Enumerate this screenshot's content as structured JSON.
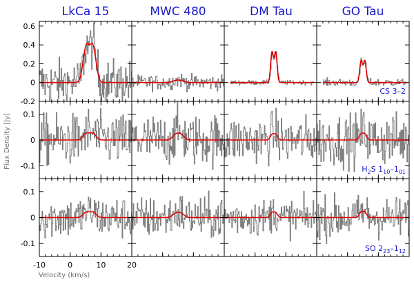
{
  "chart_data": {
    "type": "line",
    "columns": [
      "LkCa 15",
      "MWC 480",
      "DM Tau",
      "GO Tau"
    ],
    "xlabel": "Velocity (km/s)",
    "ylabel": "Flux Density [Jy]",
    "xlim": [
      -10,
      20
    ],
    "x_ticks": [
      "-10",
      "0",
      "10",
      "20"
    ],
    "grid": false,
    "colors": {
      "observed": "#808080",
      "model": "#e00000",
      "title": "#1a1acd",
      "axes": "#000000"
    },
    "rows": [
      {
        "line": "CS 3-2",
        "line_html": "CS 3–2",
        "ylim": [
          -0.2,
          0.65
        ],
        "y_ticks": [
          -0.2,
          0.0,
          0.2,
          0.4,
          0.6
        ],
        "y_tick_labels": [
          "-0.2",
          "0",
          "0.2",
          "0.4",
          "0.6"
        ],
        "models": [
          {
            "source": "LkCa 15",
            "peak": 0.37,
            "center": 6.3,
            "separation": 2.2,
            "width": 1.0
          },
          {
            "source": "MWC 480",
            "peak": 0.02,
            "center": 5.1,
            "separation": 1.8,
            "width": 1.0
          },
          {
            "source": "DM Tau",
            "peak": 0.32,
            "center": 6.1,
            "separation": 1.2,
            "width": 0.45
          },
          {
            "source": "GO Tau",
            "peak": 0.23,
            "center": 5.0,
            "separation": 1.2,
            "width": 0.45
          }
        ],
        "noise_rms": [
          0.12,
          0.04,
          0.012,
          0.02
        ]
      },
      {
        "line": "H2S 1_10-1_01",
        "ylim": [
          -0.15,
          0.15
        ],
        "y_ticks": [
          -0.1,
          0.0,
          0.1
        ],
        "y_tick_labels": [
          "-0.1",
          "0",
          "0.1"
        ],
        "models": [
          {
            "source": "LkCa 15",
            "peak": 0.025,
            "center": 6.3,
            "separation": 2.2,
            "width": 1.0
          },
          {
            "source": "MWC 480",
            "peak": 0.02,
            "center": 5.1,
            "separation": 1.8,
            "width": 1.0
          },
          {
            "source": "DM Tau",
            "peak": 0.02,
            "center": 6.1,
            "separation": 1.2,
            "width": 0.6
          },
          {
            "source": "GO Tau",
            "peak": 0.022,
            "center": 5.0,
            "separation": 1.2,
            "width": 0.6
          }
        ],
        "noise_rms": [
          0.05,
          0.05,
          0.045,
          0.05
        ]
      },
      {
        "line": "SO 2_23-1_12",
        "ylim": [
          -0.15,
          0.15
        ],
        "y_ticks": [
          -0.1,
          0.0,
          0.1
        ],
        "y_tick_labels": [
          "-0.1",
          "0",
          "0.1"
        ],
        "models": [
          {
            "source": "LkCa 15",
            "peak": 0.02,
            "center": 6.3,
            "separation": 2.2,
            "width": 1.0
          },
          {
            "source": "MWC 480",
            "peak": 0.015,
            "center": 5.1,
            "separation": 1.8,
            "width": 1.0
          },
          {
            "source": "DM Tau",
            "peak": 0.018,
            "center": 6.1,
            "separation": 1.2,
            "width": 0.6
          },
          {
            "source": "GO Tau",
            "peak": 0.02,
            "center": 5.0,
            "separation": 1.2,
            "width": 0.6
          }
        ],
        "noise_rms": [
          0.04,
          0.04,
          0.035,
          0.04
        ]
      }
    ]
  }
}
